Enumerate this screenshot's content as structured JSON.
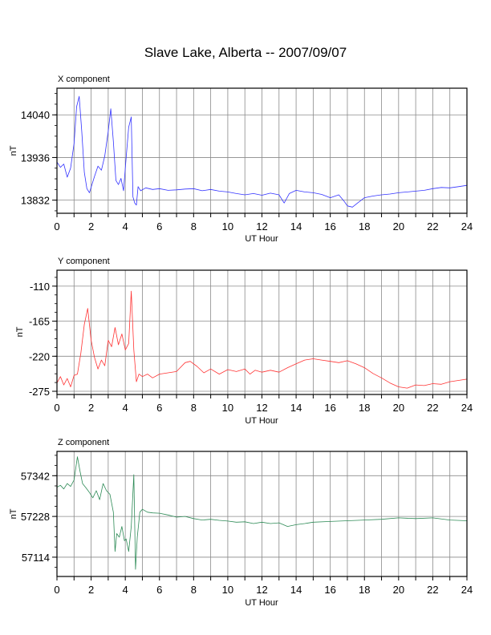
{
  "title": "Slave Lake, Alberta -- 2007/09/07",
  "colors": {
    "x": "#3333ff",
    "y": "#ff3333",
    "z": "#2e8b57",
    "grid": "#8a8a8a",
    "frame": "#000000"
  },
  "chart_data": [
    {
      "type": "line",
      "panel_label": "X component",
      "xlabel": "UT Hour",
      "ylabel": "nT",
      "xlim": [
        0,
        24
      ],
      "xticks": [
        0,
        2,
        4,
        6,
        8,
        10,
        12,
        14,
        16,
        18,
        20,
        22,
        24
      ],
      "ylim": [
        13800,
        14105
      ],
      "yticks": [
        13832,
        13936,
        14040
      ],
      "grid": true,
      "color": "#3333ff",
      "x": [
        0,
        0.2,
        0.4,
        0.6,
        0.8,
        1.0,
        1.15,
        1.3,
        1.45,
        1.6,
        1.75,
        1.9,
        2.05,
        2.2,
        2.4,
        2.6,
        2.8,
        3.0,
        3.15,
        3.3,
        3.45,
        3.6,
        3.75,
        3.9,
        4.05,
        4.2,
        4.35,
        4.45,
        4.55,
        4.65,
        4.75,
        4.9,
        5.2,
        5.6,
        6,
        6.5,
        7,
        7.5,
        8,
        8.5,
        9,
        9.5,
        10,
        10.5,
        11,
        11.5,
        12,
        12.5,
        13,
        13.3,
        13.6,
        14,
        14.5,
        15,
        15.5,
        16,
        16.5,
        16.8,
        17,
        17.3,
        17.6,
        18,
        18.5,
        19,
        19.5,
        20,
        20.5,
        21,
        21.5,
        22,
        22.5,
        23,
        23.5,
        24
      ],
      "y": [
        13925,
        13912,
        13920,
        13888,
        13910,
        13970,
        14060,
        14085,
        14000,
        13900,
        13860,
        13850,
        13870,
        13890,
        13915,
        13905,
        13940,
        14000,
        14055,
        13975,
        13880,
        13870,
        13885,
        13855,
        13935,
        14010,
        14035,
        13840,
        13825,
        13820,
        13865,
        13855,
        13862,
        13858,
        13860,
        13856,
        13857,
        13859,
        13860,
        13855,
        13858,
        13854,
        13852,
        13848,
        13845,
        13848,
        13844,
        13849,
        13845,
        13825,
        13848,
        13856,
        13852,
        13850,
        13846,
        13838,
        13845,
        13830,
        13818,
        13815,
        13825,
        13838,
        13842,
        13845,
        13847,
        13850,
        13852,
        13854,
        13856,
        13860,
        13863,
        13862,
        13865,
        13868
      ]
    },
    {
      "type": "line",
      "panel_label": "Y component",
      "xlabel": "UT Hour",
      "ylabel": "nT",
      "xlim": [
        0,
        24
      ],
      "xticks": [
        0,
        2,
        4,
        6,
        8,
        10,
        12,
        14,
        16,
        18,
        20,
        22,
        24
      ],
      "ylim": [
        -280,
        -85
      ],
      "yticks": [
        -275,
        -220,
        -165,
        -110
      ],
      "grid": true,
      "color": "#ff3333",
      "x": [
        0,
        0.2,
        0.4,
        0.6,
        0.8,
        1.0,
        1.2,
        1.4,
        1.6,
        1.8,
        2.0,
        2.2,
        2.4,
        2.6,
        2.8,
        3.0,
        3.2,
        3.4,
        3.6,
        3.8,
        4.0,
        4.2,
        4.35,
        4.5,
        4.65,
        4.8,
        5.0,
        5.3,
        5.6,
        6.0,
        6.5,
        7.0,
        7.5,
        7.8,
        8.2,
        8.6,
        9.0,
        9.5,
        10.0,
        10.5,
        11.0,
        11.3,
        11.6,
        12.0,
        12.5,
        13.0,
        13.5,
        14.0,
        14.5,
        15.0,
        15.5,
        16.0,
        16.5,
        17.0,
        17.5,
        18.0,
        18.5,
        19.0,
        19.5,
        20.0,
        20.5,
        21.0,
        21.5,
        22.0,
        22.5,
        23.0,
        23.5,
        24.0
      ],
      "y": [
        -262,
        -252,
        -265,
        -255,
        -268,
        -250,
        -248,
        -215,
        -170,
        -145,
        -195,
        -222,
        -240,
        -226,
        -235,
        -195,
        -205,
        -175,
        -202,
        -185,
        -210,
        -200,
        -118,
        -210,
        -260,
        -248,
        -252,
        -248,
        -254,
        -248,
        -246,
        -244,
        -230,
        -228,
        -236,
        -246,
        -240,
        -248,
        -241,
        -244,
        -240,
        -248,
        -242,
        -245,
        -242,
        -245,
        -238,
        -232,
        -226,
        -224,
        -226,
        -228,
        -230,
        -227,
        -232,
        -238,
        -247,
        -254,
        -262,
        -268,
        -270,
        -265,
        -266,
        -263,
        -264,
        -260,
        -258,
        -256
      ]
    },
    {
      "type": "line",
      "panel_label": "Z component",
      "xlabel": "UT Hour",
      "ylabel": "nT",
      "xlim": [
        0,
        24
      ],
      "xticks": [
        0,
        2,
        4,
        6,
        8,
        10,
        12,
        14,
        16,
        18,
        20,
        22,
        24
      ],
      "ylim": [
        57060,
        57410
      ],
      "yticks": [
        57114,
        57228,
        57342
      ],
      "grid": true,
      "color": "#2e8b57",
      "x": [
        0,
        0.2,
        0.4,
        0.6,
        0.8,
        1.0,
        1.2,
        1.35,
        1.5,
        1.7,
        1.9,
        2.1,
        2.3,
        2.5,
        2.7,
        2.9,
        3.1,
        3.3,
        3.4,
        3.5,
        3.65,
        3.8,
        3.95,
        4.05,
        4.2,
        4.35,
        4.5,
        4.6,
        4.7,
        4.85,
        5.0,
        5.3,
        5.6,
        6.0,
        6.5,
        7.0,
        7.5,
        8.0,
        8.5,
        9.0,
        9.5,
        10.0,
        10.5,
        11.0,
        11.5,
        12.0,
        12.5,
        13.0,
        13.5,
        14.0,
        14.5,
        15.0,
        16.0,
        17.0,
        18.0,
        19.0,
        20.0,
        21.0,
        22.0,
        23.0,
        24.0
      ],
      "y": [
        57310,
        57315,
        57305,
        57320,
        57312,
        57330,
        57395,
        57355,
        57320,
        57308,
        57295,
        57280,
        57300,
        57275,
        57320,
        57300,
        57290,
        57240,
        57130,
        57180,
        57170,
        57200,
        57160,
        57165,
        57130,
        57200,
        57345,
        57080,
        57170,
        57240,
        57248,
        57240,
        57238,
        57237,
        57232,
        57226,
        57228,
        57222,
        57218,
        57220,
        57217,
        57215,
        57212,
        57213,
        57208,
        57212,
        57208,
        57210,
        57200,
        57205,
        57208,
        57212,
        57214,
        57216,
        57218,
        57220,
        57224,
        57222,
        57224,
        57218,
        57216
      ]
    }
  ]
}
